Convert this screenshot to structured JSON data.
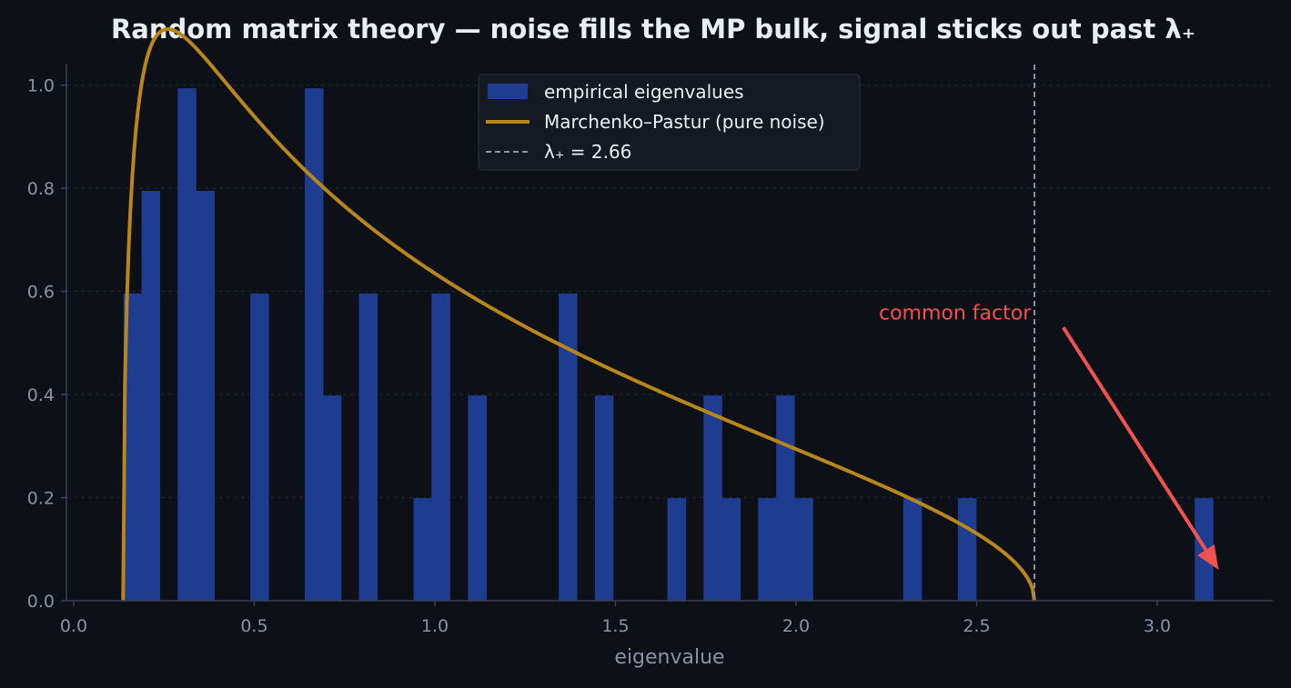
{
  "chart_data": {
    "type": "bar",
    "title": "Random matrix theory — noise fills the MP bulk, signal sticks out past λ₊",
    "xlabel": "eigenvalue",
    "ylabel": "",
    "xlim": [
      -0.02,
      3.32
    ],
    "ylim": [
      0,
      1.04
    ],
    "xticks": [
      "0.0",
      "0.5",
      "1.0",
      "1.5",
      "2.0",
      "2.5",
      "3.0"
    ],
    "yticks": [
      "0.0",
      "0.2",
      "0.4",
      "0.6",
      "0.8",
      "1.0"
    ],
    "grid": "horizontal dashed",
    "legend_position": "top-center",
    "colors": {
      "background": "#0d1017",
      "bars": "#1e3d91",
      "mp_curve": "#b8861b",
      "threshold_line": "#8a93a2",
      "annotation": "#ef5350",
      "grid": "#1f2530",
      "axis": "#3a4150"
    },
    "series": [
      {
        "name": "empirical eigenvalues",
        "kind": "histogram",
        "bin_width": 0.0503,
        "bins": [
          {
            "x0": 0.138,
            "y": 0.596
          },
          {
            "x0": 0.188,
            "y": 0.795
          },
          {
            "x0": 0.288,
            "y": 0.994
          },
          {
            "x0": 0.339,
            "y": 0.795
          },
          {
            "x0": 0.489,
            "y": 0.596
          },
          {
            "x0": 0.64,
            "y": 0.994
          },
          {
            "x0": 0.69,
            "y": 0.398
          },
          {
            "x0": 0.79,
            "y": 0.596
          },
          {
            "x0": 0.941,
            "y": 0.199
          },
          {
            "x0": 0.991,
            "y": 0.596
          },
          {
            "x0": 1.092,
            "y": 0.398
          },
          {
            "x0": 1.343,
            "y": 0.596
          },
          {
            "x0": 1.443,
            "y": 0.398
          },
          {
            "x0": 1.644,
            "y": 0.199
          },
          {
            "x0": 1.744,
            "y": 0.398
          },
          {
            "x0": 1.795,
            "y": 0.199
          },
          {
            "x0": 1.895,
            "y": 0.199
          },
          {
            "x0": 1.945,
            "y": 0.398
          },
          {
            "x0": 1.996,
            "y": 0.199
          },
          {
            "x0": 2.297,
            "y": 0.199
          },
          {
            "x0": 2.448,
            "y": 0.199
          },
          {
            "x0": 3.104,
            "y": 0.199
          }
        ]
      },
      {
        "name": "Marchenko–Pastur (pure noise)",
        "kind": "line",
        "lambda_minus": 0.137,
        "lambda_plus": 2.66,
        "ratio": 0.3
      },
      {
        "name": "λ₊ = 2.66",
        "kind": "vline",
        "x": 2.66
      }
    ],
    "annotations": [
      {
        "text": "common factor",
        "label_at": [
          2.44,
          0.56
        ],
        "arrow_from": [
          2.74,
          0.53
        ],
        "arrow_to": [
          3.17,
          0.06
        ]
      }
    ]
  }
}
